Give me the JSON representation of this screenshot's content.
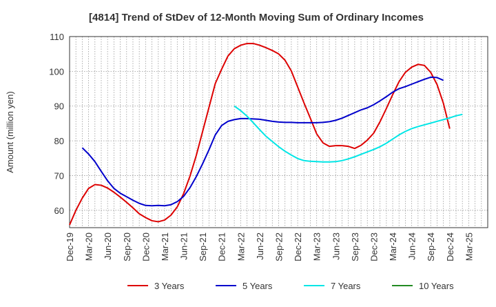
{
  "chart_data": {
    "type": "line",
    "title": "[4814]  Trend of StDev of 12-Month Moving Sum of Ordinary Incomes",
    "ylabel": "Amount (million yen)",
    "xlabel": "",
    "ylim": [
      55,
      110
    ],
    "yticks": [
      60,
      70,
      80,
      90,
      100,
      110
    ],
    "xlim": [
      0,
      66
    ],
    "x_tick_labels": [
      "Dec-19",
      "Mar-20",
      "Jun-20",
      "Sep-20",
      "Dec-20",
      "Mar-21",
      "Jun-21",
      "Sep-21",
      "Dec-21",
      "Mar-22",
      "Jun-22",
      "Sep-22",
      "Dec-22",
      "Mar-23",
      "Jun-23",
      "Sep-23",
      "Dec-23",
      "Mar-24",
      "Jun-24",
      "Sep-24",
      "Dec-24",
      "Mar-25"
    ],
    "x_unit": "months since Dec-19",
    "grid": true,
    "legend_position": "bottom",
    "series": [
      {
        "name": "3 Years",
        "color": "#dd0000",
        "start_index": 0,
        "values": [
          55.8,
          60.0,
          63.5,
          66.3,
          67.4,
          67.2,
          66.4,
          65.2,
          63.8,
          62.3,
          60.7,
          59.0,
          57.9,
          57.0,
          56.7,
          57.2,
          58.6,
          61.0,
          64.8,
          69.8,
          75.8,
          82.7,
          89.6,
          96.5,
          100.6,
          104.4,
          106.5,
          107.5,
          108.0,
          108.0,
          107.5,
          106.8,
          106.0,
          105.0,
          103.2,
          100.1,
          95.5,
          90.9,
          86.5,
          82.0,
          79.4,
          78.4,
          78.6,
          78.6,
          78.4,
          77.8,
          78.7,
          80.2,
          82.2,
          85.5,
          89.3,
          93.3,
          97.0,
          99.7,
          101.2,
          102.0,
          101.7,
          99.7,
          96.2,
          90.8,
          83.5
        ]
      },
      {
        "name": "5 Years",
        "color": "#0000cc",
        "start_index": 2,
        "values": [
          78.0,
          76.2,
          74.0,
          71.2,
          68.5,
          66.3,
          64.9,
          63.9,
          62.9,
          62.0,
          61.4,
          61.3,
          61.4,
          61.3,
          61.6,
          62.5,
          64.0,
          66.5,
          69.7,
          73.4,
          77.4,
          81.7,
          84.4,
          85.6,
          86.1,
          86.4,
          86.4,
          86.3,
          86.2,
          85.9,
          85.6,
          85.4,
          85.3,
          85.3,
          85.2,
          85.2,
          85.2,
          85.2,
          85.3,
          85.5,
          85.9,
          86.5,
          87.3,
          88.1,
          88.9,
          89.5,
          90.4,
          91.5,
          92.7,
          94.0,
          95.0,
          95.6,
          96.3,
          97.0,
          97.7,
          98.3,
          98.2,
          97.4
        ]
      },
      {
        "name": "7 Years",
        "color": "#00e6e6",
        "start_index": 26,
        "values": [
          90.0,
          88.7,
          87.1,
          85.2,
          83.2,
          81.3,
          79.8,
          78.3,
          77.0,
          75.9,
          74.9,
          74.3,
          74.1,
          74.0,
          73.9,
          73.9,
          74.0,
          74.3,
          74.8,
          75.4,
          76.1,
          76.8,
          77.5,
          78.3,
          79.3,
          80.5,
          81.7,
          82.7,
          83.5,
          84.1,
          84.6,
          85.1,
          85.6,
          86.1,
          86.6,
          87.2,
          87.6
        ]
      },
      {
        "name": "10 Years",
        "color": "#228b22",
        "start_index": 0,
        "values": []
      }
    ]
  }
}
